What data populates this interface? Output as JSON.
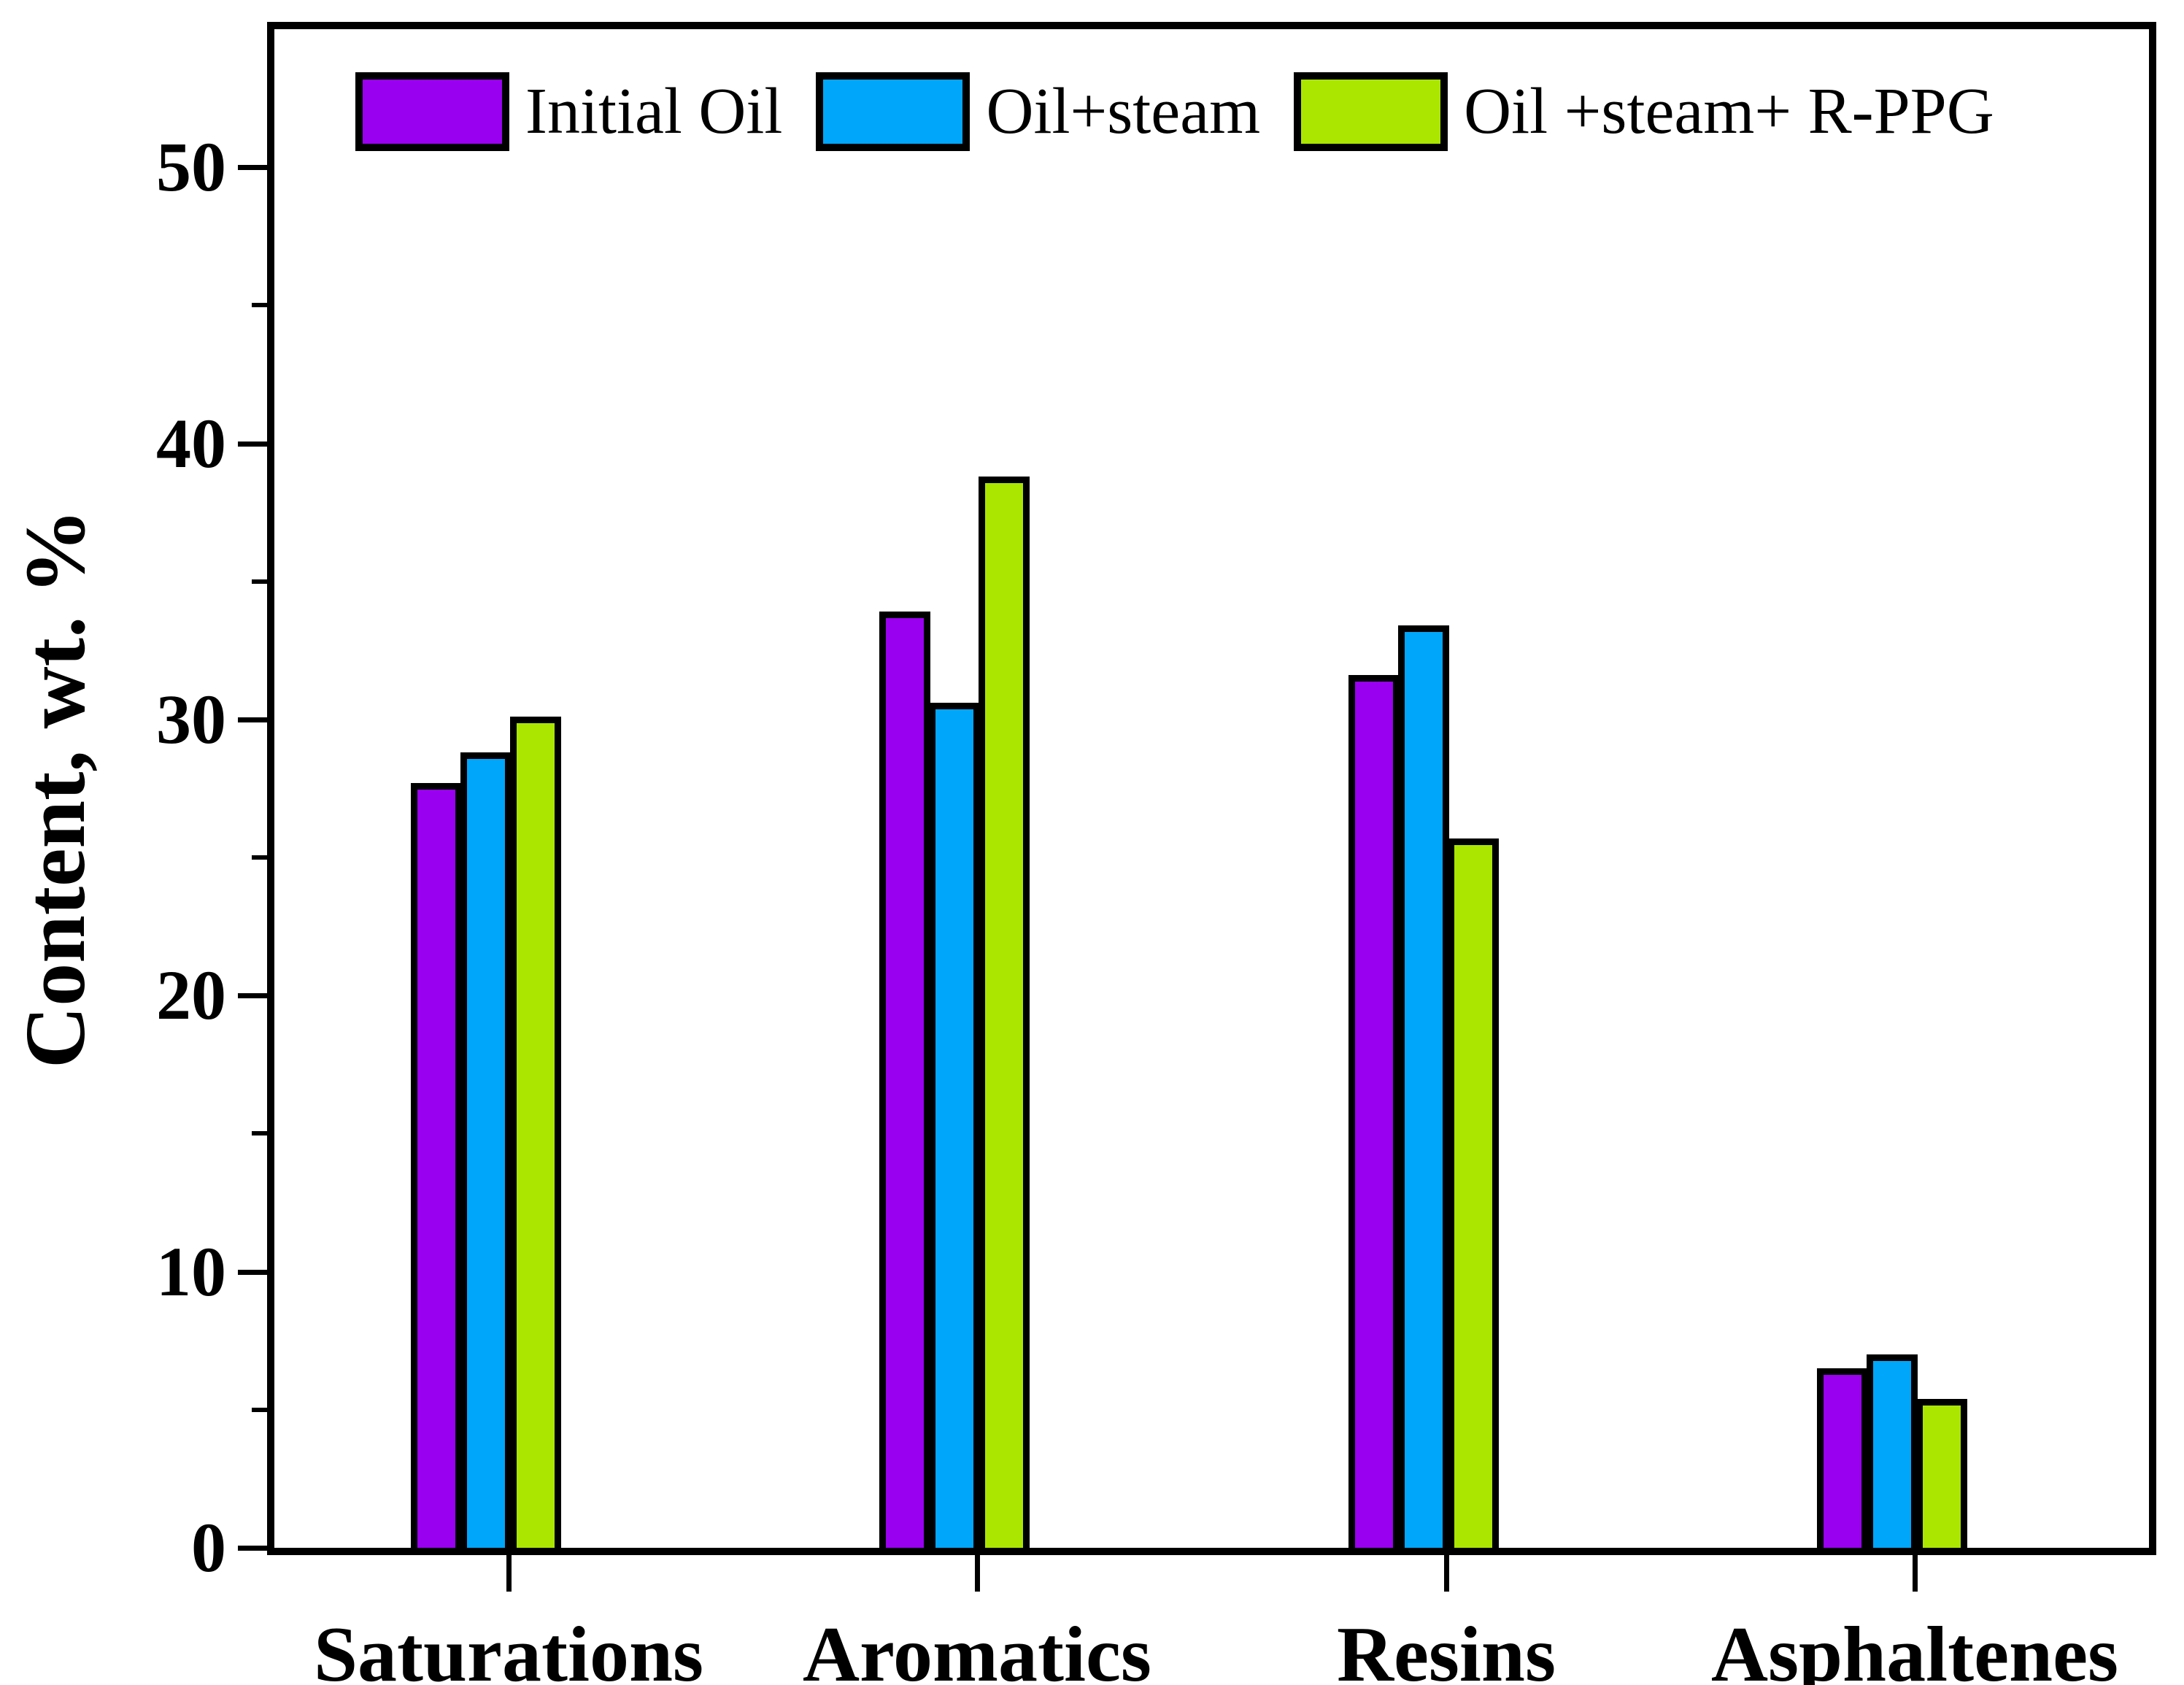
{
  "chart_data": {
    "type": "bar",
    "title": "",
    "categories": [
      "Saturations",
      "Aromatics",
      "Resins",
      "Asphaltenes"
    ],
    "series": [
      {
        "name": "Initial Oil",
        "color": "#9900F0",
        "values": [
          27.7,
          33.9,
          31.6,
          6.5
        ]
      },
      {
        "name": "Oil+steam",
        "color": "#00A6FA",
        "values": [
          28.8,
          30.6,
          33.4,
          7.0
        ]
      },
      {
        "name": "Oil +steam+ R-PPG",
        "color": "#AAE600",
        "values": [
          30.1,
          38.8,
          25.7,
          5.4
        ]
      }
    ],
    "xlabel": "",
    "ylabel": "Content, wt. %",
    "ylim": [
      0,
      55
    ],
    "y_major_ticks": [
      0,
      10,
      20,
      30,
      40,
      50
    ],
    "y_minor_ticks": [
      5,
      15,
      25,
      35,
      45
    ],
    "grid": false,
    "legend_position": "top-inside-left",
    "bar_outline_color": "#000000",
    "background_color": "#FFFFFF"
  }
}
